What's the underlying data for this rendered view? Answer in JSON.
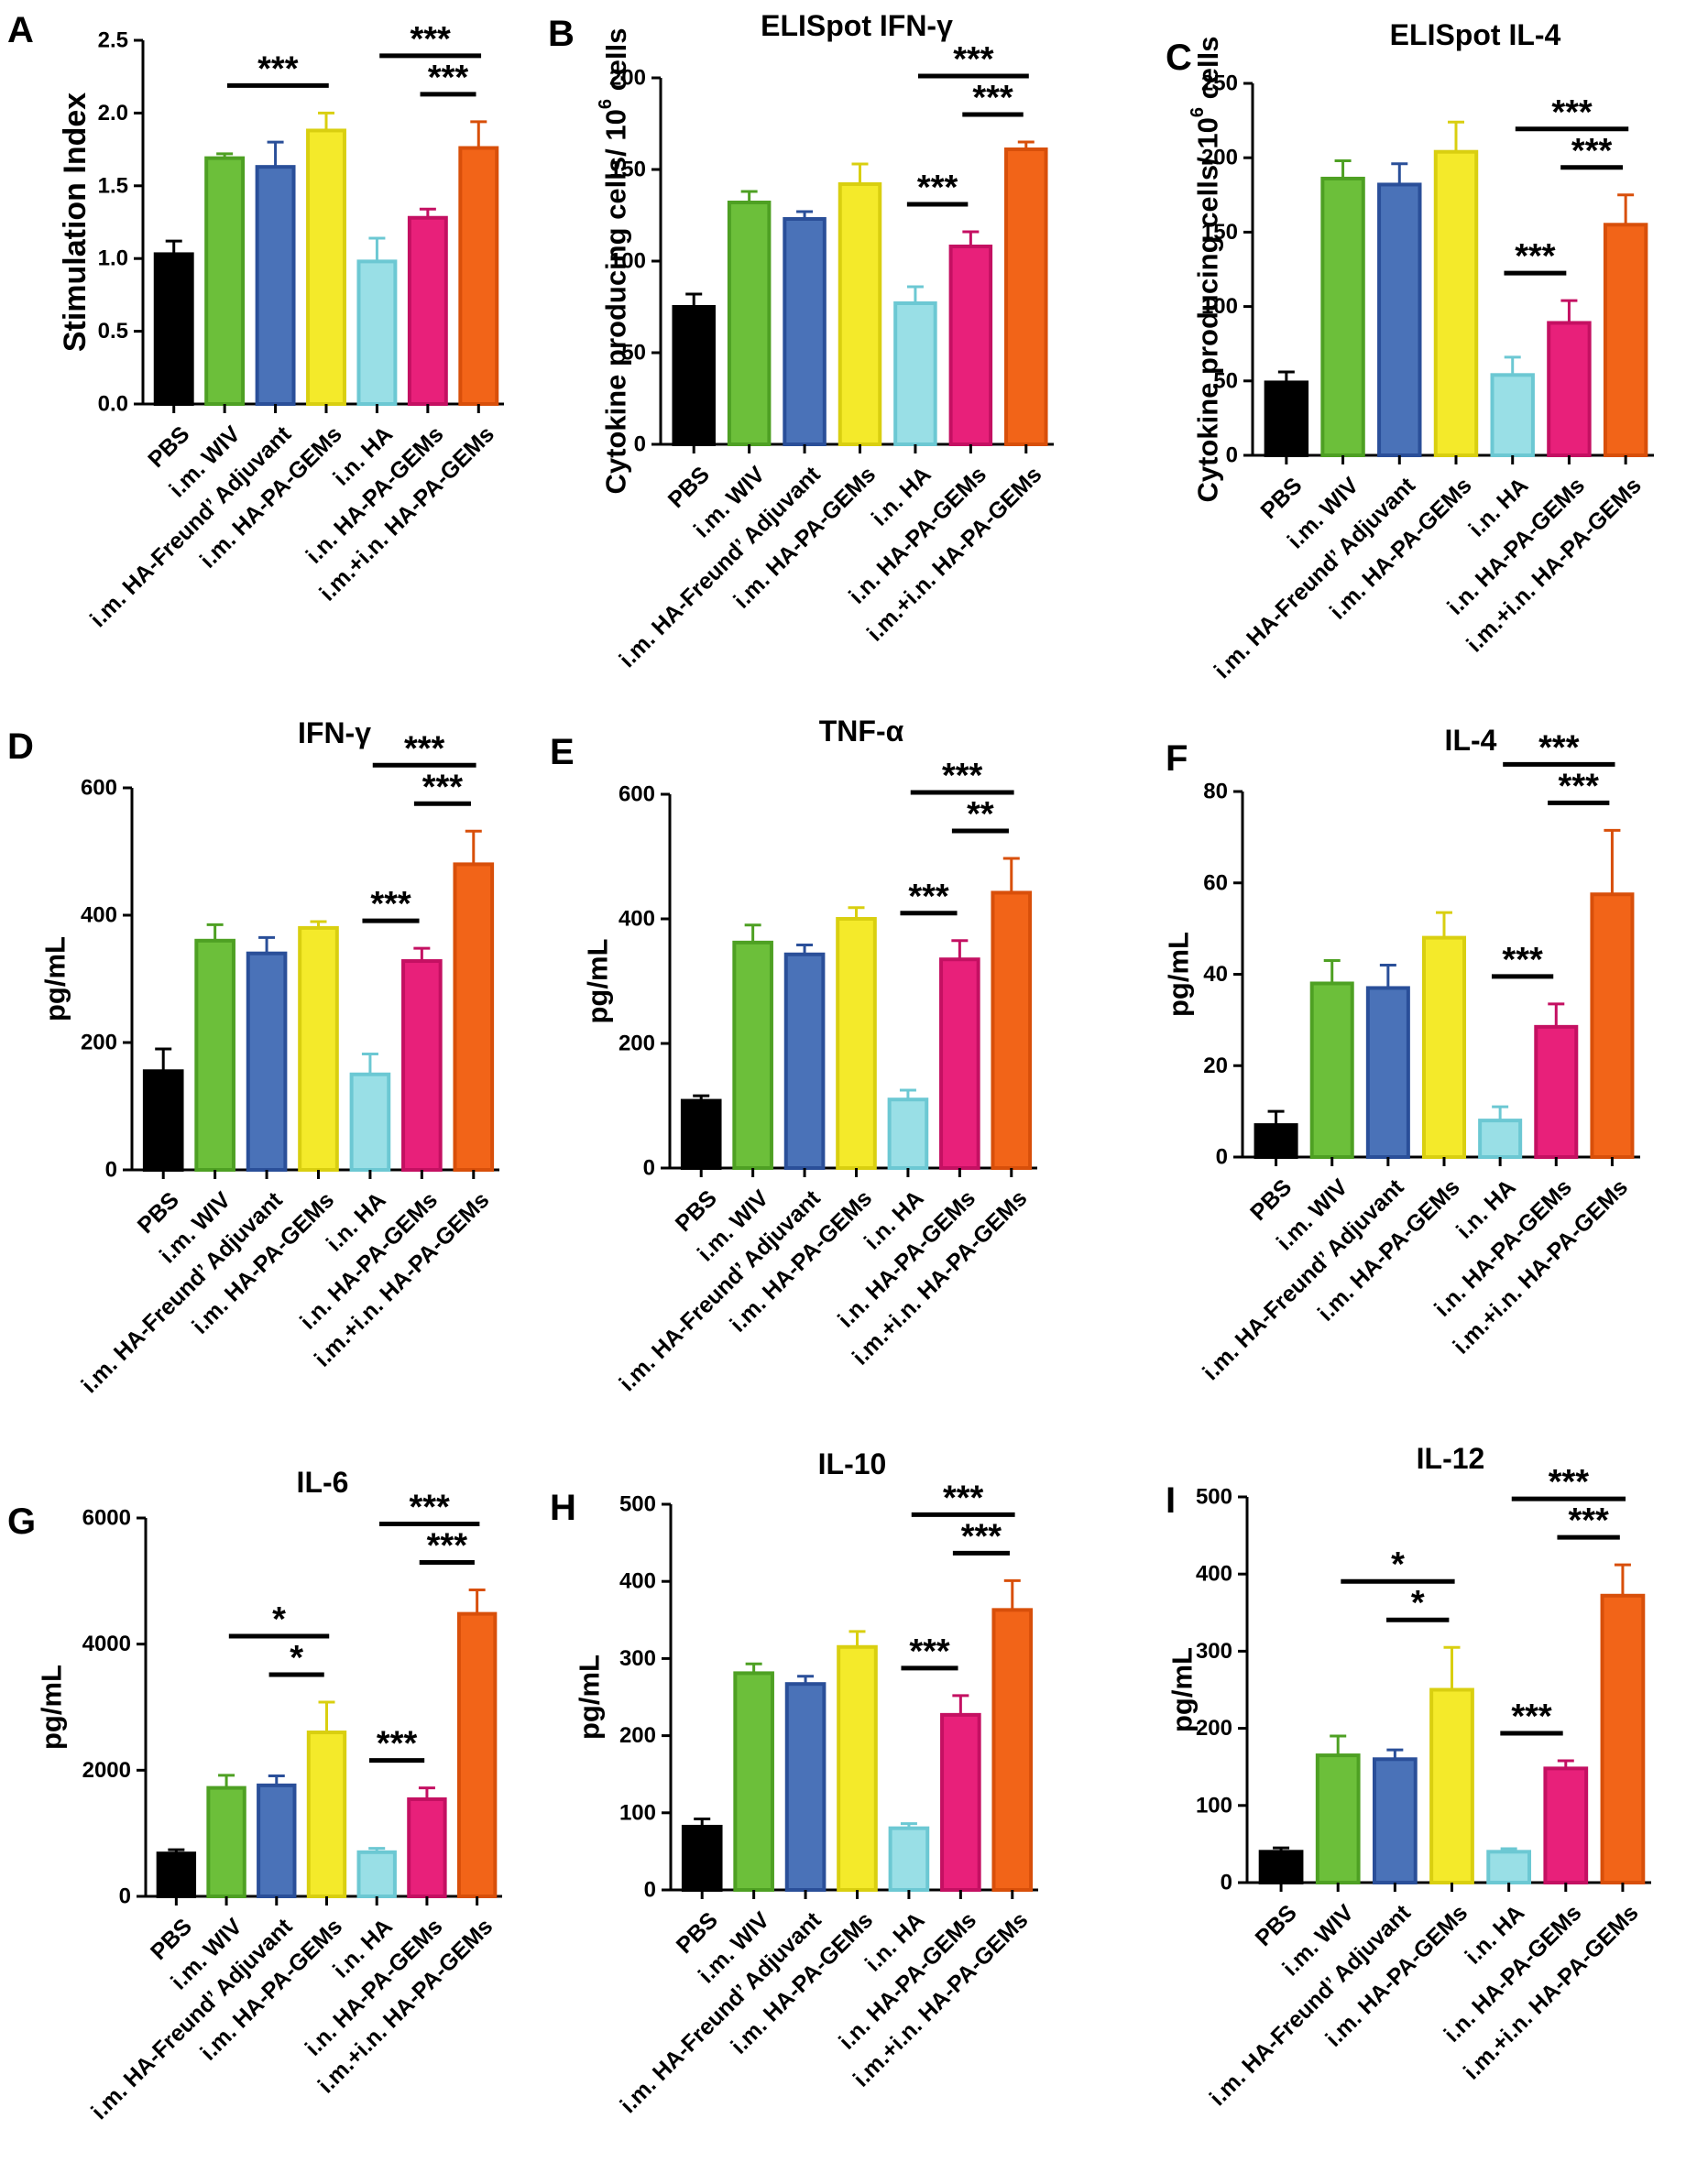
{
  "figure": {
    "categories": [
      "PBS",
      "i.m. WIV",
      "i.m. HA-Freund’ Adjuvant",
      "i.m. HA-PA-GEMs",
      "i.n. HA",
      "i.n. HA-PA-GEMs",
      "i.m.+i.n. HA-PA-GEMs"
    ],
    "colors": {
      "fills": [
        "#000000",
        "#6cbf3a",
        "#4a72b8",
        "#f4ea2a",
        "#99dfe6",
        "#e8207a",
        "#f26418"
      ],
      "edges": [
        "#000000",
        "#4ea023",
        "#2a4f99",
        "#d9cf10",
        "#6cc8d3",
        "#c41062",
        "#d84f0a"
      ],
      "axis": "#000000"
    }
  },
  "chart_data": [
    {
      "panel": "A",
      "type": "bar",
      "title": "",
      "ylabel": "Stimulation Index",
      "ylim": [
        0,
        2.5
      ],
      "yticks": [
        0.0,
        0.5,
        1.0,
        1.5,
        2.0,
        2.5
      ],
      "ytick_labels": [
        "0.0",
        "0.5",
        "1.0",
        "1.5",
        "2.0",
        "2.5"
      ],
      "values": [
        1.03,
        1.69,
        1.63,
        1.88,
        0.98,
        1.28,
        1.76
      ],
      "errors": [
        0.09,
        0.03,
        0.17,
        0.12,
        0.16,
        0.06,
        0.18
      ],
      "significance": [
        {
          "from": 2,
          "to": 4,
          "label": "***"
        },
        {
          "from": 5,
          "to": 7,
          "label": "***"
        },
        {
          "from": 6,
          "to": 7,
          "label": "***"
        }
      ]
    },
    {
      "panel": "B",
      "type": "bar",
      "title": "ELISpot IFN-γ",
      "ylabel": "Cytokine producing cells/ 10",
      "ylabel_sup": "6",
      "ylabel_end": " cells",
      "ylim": [
        0,
        200
      ],
      "yticks": [
        0,
        50,
        100,
        150,
        200
      ],
      "ytick_labels": [
        "0",
        "50",
        "100",
        "150",
        "200"
      ],
      "values": [
        75,
        132,
        123,
        142,
        77,
        108,
        161
      ],
      "errors": [
        7,
        6,
        4,
        11,
        9,
        8,
        4
      ],
      "significance": [
        {
          "from": 5,
          "to": 6,
          "label": "***"
        },
        {
          "from": 5,
          "to": 7,
          "label": "***"
        },
        {
          "from": 6,
          "to": 7,
          "label": "***"
        }
      ]
    },
    {
      "panel": "C",
      "type": "bar",
      "title": "ELISpot IL-4",
      "ylabel": "Cytokine producing cells/ 10",
      "ylabel_sup": "6",
      "ylabel_end": " cells",
      "ylim": [
        0,
        250
      ],
      "yticks": [
        0,
        50,
        100,
        150,
        200,
        250
      ],
      "ytick_labels": [
        "0",
        "50",
        "100",
        "150",
        "200",
        "250"
      ],
      "values": [
        49,
        186,
        182,
        204,
        54,
        89,
        155
      ],
      "errors": [
        7,
        12,
        14,
        20,
        12,
        15,
        20
      ],
      "significance": [
        {
          "from": 5,
          "to": 6,
          "label": "***"
        },
        {
          "from": 5,
          "to": 7,
          "label": "***"
        },
        {
          "from": 6,
          "to": 7,
          "label": "***"
        }
      ]
    },
    {
      "panel": "D",
      "type": "bar",
      "title": "IFN-γ",
      "ylabel": "pg/mL",
      "ylim": [
        0,
        600
      ],
      "yticks": [
        0,
        200,
        400,
        600
      ],
      "ytick_labels": [
        "0",
        "200",
        "400",
        "600"
      ],
      "values": [
        155,
        360,
        340,
        380,
        150,
        328,
        480
      ],
      "errors": [
        35,
        25,
        25,
        10,
        32,
        20,
        52
      ],
      "significance": [
        {
          "from": 5,
          "to": 6,
          "label": "***"
        },
        {
          "from": 5,
          "to": 7,
          "label": "***"
        },
        {
          "from": 6,
          "to": 7,
          "label": "***"
        }
      ]
    },
    {
      "panel": "E",
      "type": "bar",
      "title": "TNF-α",
      "ylabel": "pg/mL",
      "ylim": [
        0,
        600
      ],
      "yticks": [
        0,
        200,
        400,
        600
      ],
      "ytick_labels": [
        "0",
        "200",
        "400",
        "600"
      ],
      "values": [
        108,
        362,
        343,
        400,
        110,
        335,
        442
      ],
      "errors": [
        8,
        28,
        15,
        18,
        15,
        30,
        55
      ],
      "significance": [
        {
          "from": 5,
          "to": 6,
          "label": "***"
        },
        {
          "from": 5,
          "to": 7,
          "label": "***"
        },
        {
          "from": 6,
          "to": 7,
          "label": "**"
        }
      ]
    },
    {
      "panel": "F",
      "type": "bar",
      "title": "IL-4",
      "ylabel": "pg/mL",
      "ylim": [
        0,
        80
      ],
      "yticks": [
        0,
        20,
        40,
        60,
        80
      ],
      "ytick_labels": [
        "0",
        "20",
        "40",
        "60",
        "80"
      ],
      "values": [
        7,
        38,
        37,
        48,
        8,
        28.5,
        57.5
      ],
      "errors": [
        3,
        5,
        5,
        5.5,
        3,
        5,
        14
      ],
      "significance": [
        {
          "from": 5,
          "to": 6,
          "label": "***"
        },
        {
          "from": 5,
          "to": 7,
          "label": "***"
        },
        {
          "from": 6,
          "to": 7,
          "label": "***"
        }
      ]
    },
    {
      "panel": "G",
      "type": "bar",
      "title": "IL-6",
      "ylabel": "pg/mL",
      "ylim": [
        0,
        6000
      ],
      "yticks": [
        0,
        2000,
        4000,
        6000
      ],
      "ytick_labels": [
        "0",
        "2000",
        "4000",
        "6000"
      ],
      "values": [
        680,
        1720,
        1760,
        2600,
        700,
        1540,
        4480
      ],
      "errors": [
        60,
        200,
        150,
        480,
        60,
        180,
        380
      ],
      "significance": [
        {
          "from": 2,
          "to": 4,
          "label": "*"
        },
        {
          "from": 3,
          "to": 4,
          "label": "*"
        },
        {
          "from": 5,
          "to": 6,
          "label": "***"
        },
        {
          "from": 5,
          "to": 7,
          "label": "***"
        },
        {
          "from": 6,
          "to": 7,
          "label": "***"
        }
      ]
    },
    {
      "panel": "H",
      "type": "bar",
      "title": "IL-10",
      "ylabel": "pg/mL",
      "ylim": [
        0,
        500
      ],
      "yticks": [
        0,
        100,
        200,
        300,
        400,
        500
      ],
      "ytick_labels": [
        "0",
        "100",
        "200",
        "300",
        "400",
        "500"
      ],
      "values": [
        82,
        281,
        267,
        315,
        80,
        227,
        363
      ],
      "errors": [
        10,
        12,
        10,
        20,
        6,
        25,
        38
      ],
      "significance": [
        {
          "from": 5,
          "to": 6,
          "label": "***"
        },
        {
          "from": 5,
          "to": 7,
          "label": "***"
        },
        {
          "from": 6,
          "to": 7,
          "label": "***"
        }
      ]
    },
    {
      "panel": "I",
      "type": "bar",
      "title": "IL-12",
      "ylabel": "pg/mL",
      "ylim": [
        0,
        500
      ],
      "yticks": [
        0,
        100,
        200,
        300,
        400,
        500
      ],
      "ytick_labels": [
        "0",
        "100",
        "200",
        "300",
        "400",
        "500"
      ],
      "values": [
        40,
        165,
        160,
        250,
        40,
        148,
        372
      ],
      "errors": [
        5,
        25,
        12,
        55,
        4,
        10,
        40
      ],
      "significance": [
        {
          "from": 2,
          "to": 4,
          "label": "*"
        },
        {
          "from": 3,
          "to": 4,
          "label": "*"
        },
        {
          "from": 5,
          "to": 6,
          "label": "***"
        },
        {
          "from": 5,
          "to": 7,
          "label": "***"
        },
        {
          "from": 6,
          "to": 7,
          "label": "***"
        }
      ]
    }
  ]
}
